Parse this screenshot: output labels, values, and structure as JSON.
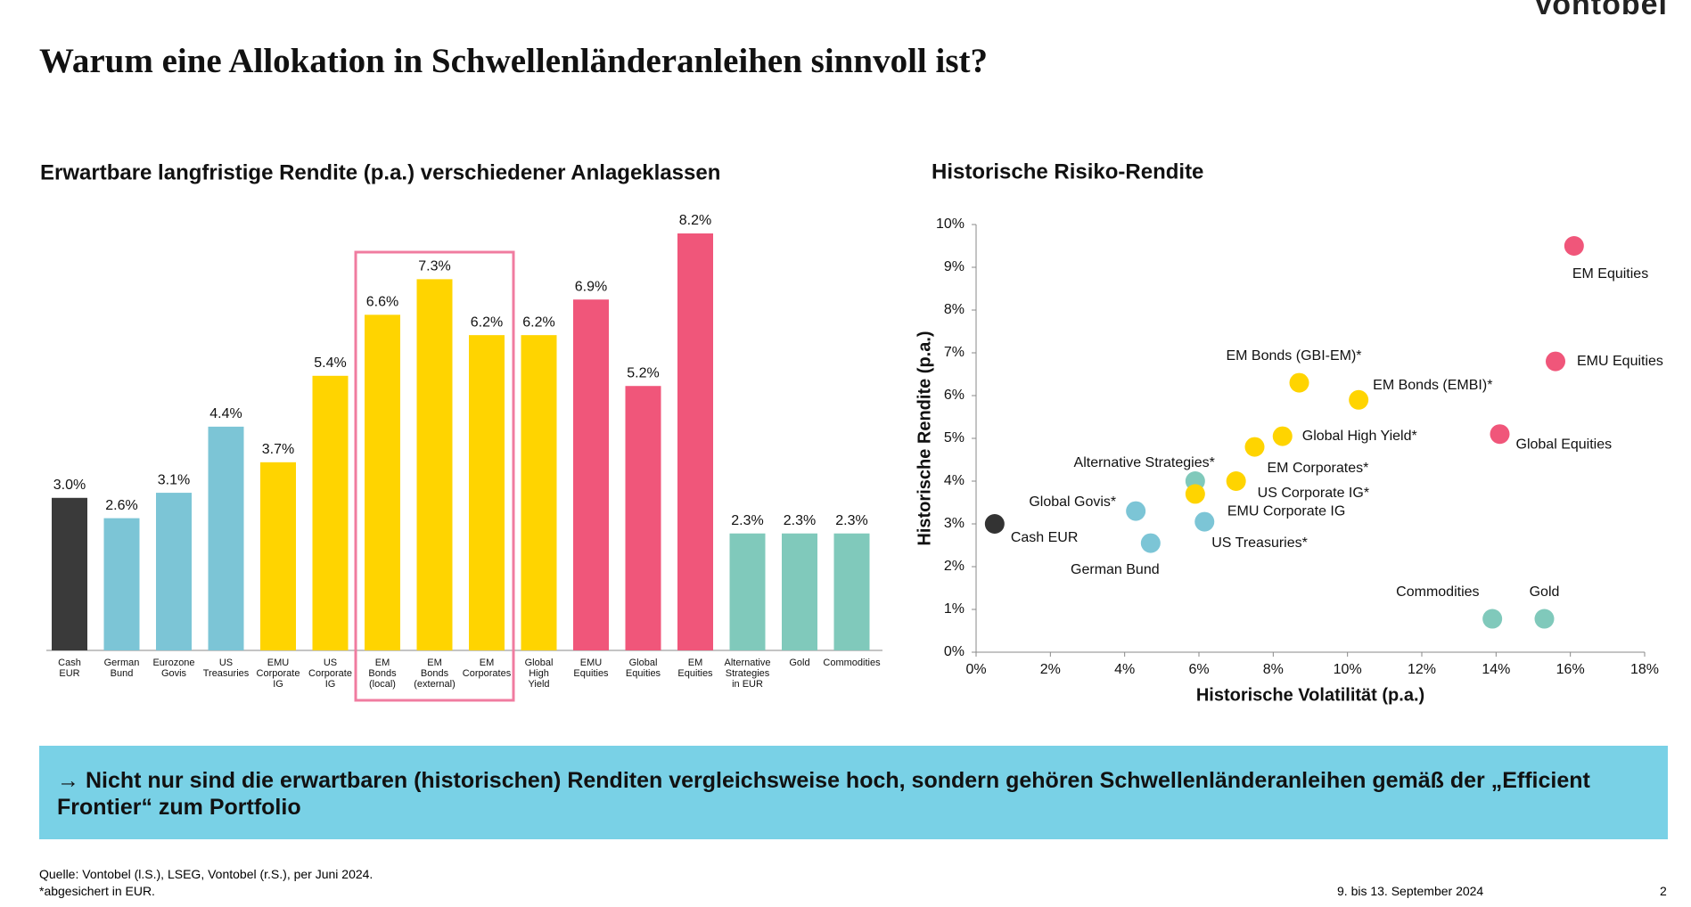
{
  "header": {
    "title": "Warum eine Allokation in Schwellenländeranleihen sinnvoll ist?",
    "logo": "Vontobel"
  },
  "chart_data": [
    {
      "type": "bar",
      "title": "Erwartbare langfristige Rendite (p.a.) verschiedener Anlageklassen",
      "categories": [
        "Cash\nEUR",
        "German\nBund",
        "Eurozone\nGovis",
        "US\nTreasuries",
        "EMU\nCorporate\nIG",
        "US\nCorporate\nIG",
        "EM\nBonds\n(local)",
        "EM\nBonds\n(external)",
        "EM\nCorporates",
        "Global\nHigh\nYield",
        "EMU\nEquities",
        "Global\nEquities",
        "EM\nEquities",
        "Alternative\nStrategies\nin EUR",
        "Gold",
        "Commodities"
      ],
      "values": [
        3.0,
        2.6,
        3.1,
        4.4,
        3.7,
        5.4,
        6.6,
        7.3,
        6.2,
        6.2,
        6.9,
        5.2,
        8.2,
        2.3,
        2.3,
        2.3
      ],
      "value_labels": [
        "3.0%",
        "2.6%",
        "3.1%",
        "4.4%",
        "3.7%",
        "5.4%",
        "6.6%",
        "7.3%",
        "6.2%",
        "6.2%",
        "6.9%",
        "5.2%",
        "8.2%",
        "2.3%",
        "2.3%",
        "2.3%"
      ],
      "colors": [
        "#3a3a3a",
        "#7cc5d6",
        "#7cc5d6",
        "#7cc5d6",
        "#ffd400",
        "#ffd400",
        "#ffd400",
        "#ffd400",
        "#ffd400",
        "#ffd400",
        "#f0567a",
        "#f0567a",
        "#f0567a",
        "#80c9bb",
        "#80c9bb",
        "#80c9bb"
      ]
    },
    {
      "type": "scatter",
      "title": "Historische Risiko-Rendite",
      "xlabel": "Historische Volatilität (p.a.)",
      "ylabel": "Historische Rendite (p.a.)",
      "xlim": [
        0,
        18
      ],
      "ylim": [
        0,
        10
      ],
      "xticks": [
        {
          "value": 0,
          "label": "0%"
        },
        {
          "value": 2,
          "label": "2%"
        },
        {
          "value": 4,
          "label": "4%"
        },
        {
          "value": 6,
          "label": "6%"
        },
        {
          "value": 8,
          "label": "8%"
        },
        {
          "value": 10,
          "label": "10%"
        },
        {
          "value": 12,
          "label": "12%"
        },
        {
          "value": 14,
          "label": "14%"
        },
        {
          "value": 16,
          "label": "16%"
        },
        {
          "value": 18,
          "label": "18%"
        }
      ],
      "yticks": [
        {
          "value": 0,
          "label": "0%"
        },
        {
          "value": 1,
          "label": "1%"
        },
        {
          "value": 2,
          "label": "2%"
        },
        {
          "value": 3,
          "label": "3%"
        },
        {
          "value": 4,
          "label": "4%"
        },
        {
          "value": 5,
          "label": "5%"
        },
        {
          "value": 6,
          "label": "6%"
        },
        {
          "value": 7,
          "label": "7%"
        },
        {
          "value": 8,
          "label": "8%"
        },
        {
          "value": 9,
          "label": "9%"
        },
        {
          "value": 10,
          "label": "10%"
        }
      ],
      "points": [
        {
          "label": "Cash EUR",
          "x": 0.5,
          "y": 3.0,
          "color": "#333333"
        },
        {
          "label": "German Bund",
          "x": 4.7,
          "y": 2.55,
          "color": "#7cc5d6"
        },
        {
          "label": "Global Govis*",
          "x": 4.3,
          "y": 3.3,
          "color": "#7cc5d6"
        },
        {
          "label": "US Treasuries*",
          "x": 6.15,
          "y": 3.05,
          "color": "#7cc5d6"
        },
        {
          "label": "Alternative Strategies*",
          "x": 5.9,
          "y": 4.0,
          "color": "#80c9bb"
        },
        {
          "label": "EMU Corporate IG",
          "x": 5.9,
          "y": 3.7,
          "color": "#ffd400"
        },
        {
          "label": "US Corporate IG*",
          "x": 7.0,
          "y": 4.0,
          "color": "#ffd400"
        },
        {
          "label": "EM Corporates*",
          "x": 7.5,
          "y": 4.8,
          "color": "#ffd400"
        },
        {
          "label": "Global High Yield*",
          "x": 8.25,
          "y": 5.05,
          "color": "#ffd400"
        },
        {
          "label": "EM Bonds (GBI-EM)*",
          "x": 8.7,
          "y": 6.3,
          "color": "#ffd400"
        },
        {
          "label": "EM Bonds (EMBI)*",
          "x": 10.3,
          "y": 5.9,
          "color": "#ffd400"
        },
        {
          "label": "Global Equities",
          "x": 14.1,
          "y": 5.1,
          "color": "#f0567a"
        },
        {
          "label": "EMU Equities",
          "x": 15.6,
          "y": 6.8,
          "color": "#f0567a"
        },
        {
          "label": "EM Equities",
          "x": 16.1,
          "y": 9.5,
          "color": "#f0567a"
        },
        {
          "label": "Commodities",
          "x": 13.9,
          "y": 0.78,
          "color": "#80c9bb"
        },
        {
          "label": "Gold",
          "x": 15.3,
          "y": 0.78,
          "color": "#80c9bb"
        }
      ]
    }
  ],
  "banner": "→ Nicht nur sind die erwartbaren (historischen) Renditen vergleichsweise hoch, sondern gehören Schwellenländeranleihen gemäß der „Efficient Frontier“ zum Portfolio",
  "footer": {
    "source": "Quelle: Vontobel (l.S.), LSEG, Vontobel (r.S.), per Juni 2024.",
    "note": "*abgesichert in EUR.",
    "date": "9. bis 13. September 2024",
    "page": "2"
  }
}
